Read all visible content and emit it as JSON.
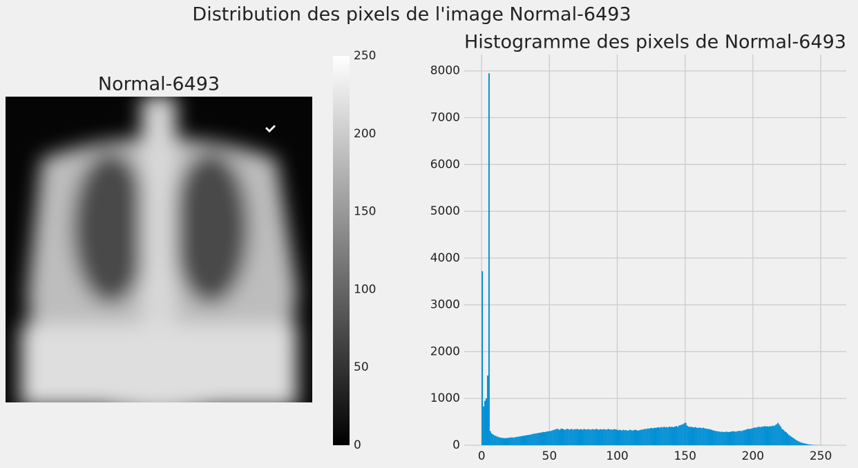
{
  "title": "Distribution des pixels de l'image Normal-6493",
  "image": {
    "title": "Normal-6493",
    "colorbar": {
      "clim": [
        0,
        250
      ],
      "ticks": [
        0,
        50,
        100,
        150,
        200,
        250
      ]
    }
  },
  "chart_data": {
    "type": "histogram",
    "title": "Histogramme des pixels de Normal-6493",
    "color": "#008fd5",
    "grid": true,
    "xlim": [
      -12.8,
      268.8
    ],
    "xticks": [
      0,
      50,
      100,
      150,
      200,
      250
    ],
    "ylim": [
      0,
      8350
    ],
    "yticks": [
      0,
      1000,
      2000,
      3000,
      4000,
      5000,
      6000,
      7000,
      8000
    ],
    "bins": [
      0,
      1,
      2,
      3,
      4,
      5,
      6,
      7,
      8,
      9,
      10,
      11,
      12,
      13,
      14,
      15,
      16,
      17,
      18,
      19,
      20,
      21,
      22,
      23,
      24,
      25,
      26,
      27,
      28,
      29,
      30,
      31,
      32,
      33,
      34,
      35,
      36,
      37,
      38,
      39,
      40,
      41,
      42,
      43,
      44,
      45,
      46,
      47,
      48,
      49,
      50,
      51,
      52,
      53,
      54,
      55,
      56,
      57,
      58,
      59,
      60,
      61,
      62,
      63,
      64,
      65,
      66,
      67,
      68,
      69,
      70,
      71,
      72,
      73,
      74,
      75,
      76,
      77,
      78,
      79,
      80,
      81,
      82,
      83,
      84,
      85,
      86,
      87,
      88,
      89,
      90,
      91,
      92,
      93,
      94,
      95,
      96,
      97,
      98,
      99,
      100,
      101,
      102,
      103,
      104,
      105,
      106,
      107,
      108,
      109,
      110,
      111,
      112,
      113,
      114,
      115,
      116,
      117,
      118,
      119,
      120,
      121,
      122,
      123,
      124,
      125,
      126,
      127,
      128,
      129,
      130,
      131,
      132,
      133,
      134,
      135,
      136,
      137,
      138,
      139,
      140,
      141,
      142,
      143,
      144,
      145,
      146,
      147,
      148,
      149,
      150,
      151,
      152,
      153,
      154,
      155,
      156,
      157,
      158,
      159,
      160,
      161,
      162,
      163,
      164,
      165,
      166,
      167,
      168,
      169,
      170,
      171,
      172,
      173,
      174,
      175,
      176,
      177,
      178,
      179,
      180,
      181,
      182,
      183,
      184,
      185,
      186,
      187,
      188,
      189,
      190,
      191,
      192,
      193,
      194,
      195,
      196,
      197,
      198,
      199,
      200,
      201,
      202,
      203,
      204,
      205,
      206,
      207,
      208,
      209,
      210,
      211,
      212,
      213,
      214,
      215,
      216,
      217,
      218,
      219,
      220,
      221,
      222,
      223,
      224,
      225,
      226,
      227,
      228,
      229,
      230,
      231,
      232,
      233,
      234,
      235,
      236,
      237,
      238,
      239,
      240,
      241,
      242,
      243,
      244,
      245,
      246,
      247,
      248,
      249,
      250,
      251,
      252,
      253,
      254,
      255,
      256
    ],
    "counts": [
      3720,
      830,
      950,
      1000,
      1490,
      7950,
      300,
      250,
      230,
      210,
      200,
      185,
      175,
      165,
      160,
      155,
      150,
      155,
      150,
      160,
      160,
      165,
      170,
      160,
      170,
      175,
      180,
      185,
      190,
      195,
      200,
      205,
      210,
      215,
      220,
      225,
      230,
      240,
      245,
      250,
      255,
      260,
      265,
      270,
      275,
      285,
      280,
      290,
      295,
      300,
      300,
      310,
      320,
      330,
      340,
      350,
      345,
      330,
      350,
      355,
      340,
      330,
      345,
      350,
      335,
      340,
      350,
      330,
      345,
      340,
      350,
      335,
      340,
      345,
      330,
      350,
      340,
      335,
      345,
      340,
      330,
      345,
      340,
      335,
      350,
      340,
      330,
      345,
      335,
      340,
      345,
      330,
      340,
      350,
      335,
      340,
      330,
      345,
      340,
      335,
      320,
      330,
      325,
      315,
      330,
      320,
      325,
      310,
      320,
      330,
      320,
      315,
      325,
      330,
      320,
      310,
      325,
      330,
      335,
      340,
      350,
      345,
      360,
      355,
      365,
      370,
      360,
      375,
      370,
      380,
      385,
      375,
      390,
      380,
      395,
      385,
      390,
      380,
      400,
      390,
      395,
      385,
      400,
      410,
      395,
      420,
      430,
      440,
      450,
      470,
      480,
      420,
      400,
      390,
      395,
      385,
      380,
      390,
      375,
      370,
      380,
      370,
      365,
      375,
      360,
      355,
      350,
      345,
      340,
      330,
      320,
      310,
      305,
      300,
      295,
      290,
      285,
      290,
      280,
      285,
      290,
      285,
      280,
      290,
      295,
      300,
      295,
      290,
      300,
      305,
      310,
      300,
      315,
      320,
      330,
      340,
      350,
      345,
      355,
      360,
      370,
      380,
      375,
      390,
      395,
      385,
      400,
      395,
      410,
      400,
      405,
      395,
      410,
      400,
      420,
      410,
      430,
      450,
      480,
      440,
      400,
      350,
      330,
      300,
      280,
      250,
      220,
      200,
      180,
      160,
      140,
      120,
      100,
      85,
      70,
      60,
      50,
      40,
      35,
      28,
      22,
      18,
      14,
      10,
      8,
      6,
      5,
      4,
      3,
      2,
      2,
      1,
      1,
      1,
      0,
      0
    ]
  }
}
